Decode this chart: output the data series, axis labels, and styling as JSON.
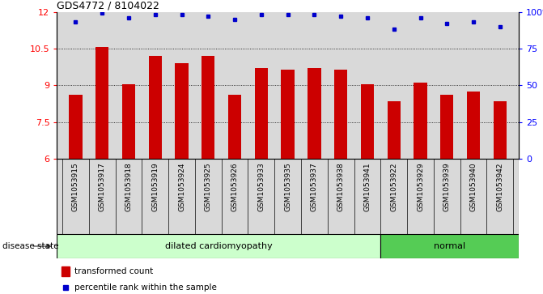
{
  "title": "GDS4772 / 8104022",
  "samples": [
    "GSM1053915",
    "GSM1053917",
    "GSM1053918",
    "GSM1053919",
    "GSM1053924",
    "GSM1053925",
    "GSM1053926",
    "GSM1053933",
    "GSM1053935",
    "GSM1053937",
    "GSM1053938",
    "GSM1053941",
    "GSM1053922",
    "GSM1053929",
    "GSM1053939",
    "GSM1053940",
    "GSM1053942"
  ],
  "transformed_count": [
    8.6,
    10.55,
    9.05,
    10.2,
    9.9,
    10.2,
    8.6,
    9.7,
    9.65,
    9.7,
    9.65,
    9.05,
    8.35,
    9.1,
    8.6,
    8.75,
    8.35
  ],
  "percentile_rank": [
    93,
    99,
    96,
    98,
    98,
    97,
    95,
    98,
    98,
    98,
    97,
    96,
    88,
    96,
    92,
    93,
    90
  ],
  "n_dilated": 12,
  "ylim_left": [
    6,
    12
  ],
  "ylim_right": [
    0,
    100
  ],
  "yticks_left": [
    6,
    7.5,
    9,
    10.5,
    12
  ],
  "yticks_right": [
    0,
    25,
    50,
    75,
    100
  ],
  "ytick_labels_right": [
    "0",
    "25",
    "50",
    "75",
    "100%"
  ],
  "bar_color": "#cc0000",
  "dot_color": "#0000cc",
  "bg_color": "#d9d9d9",
  "dilated_bg": "#ccffcc",
  "normal_bg": "#55cc55",
  "bar_width": 0.5,
  "legend_bar_label": "transformed count",
  "legend_dot_label": "percentile rank within the sample",
  "disease_state_label": "disease state",
  "dilated_label": "dilated cardiomyopathy",
  "normal_label": "normal"
}
